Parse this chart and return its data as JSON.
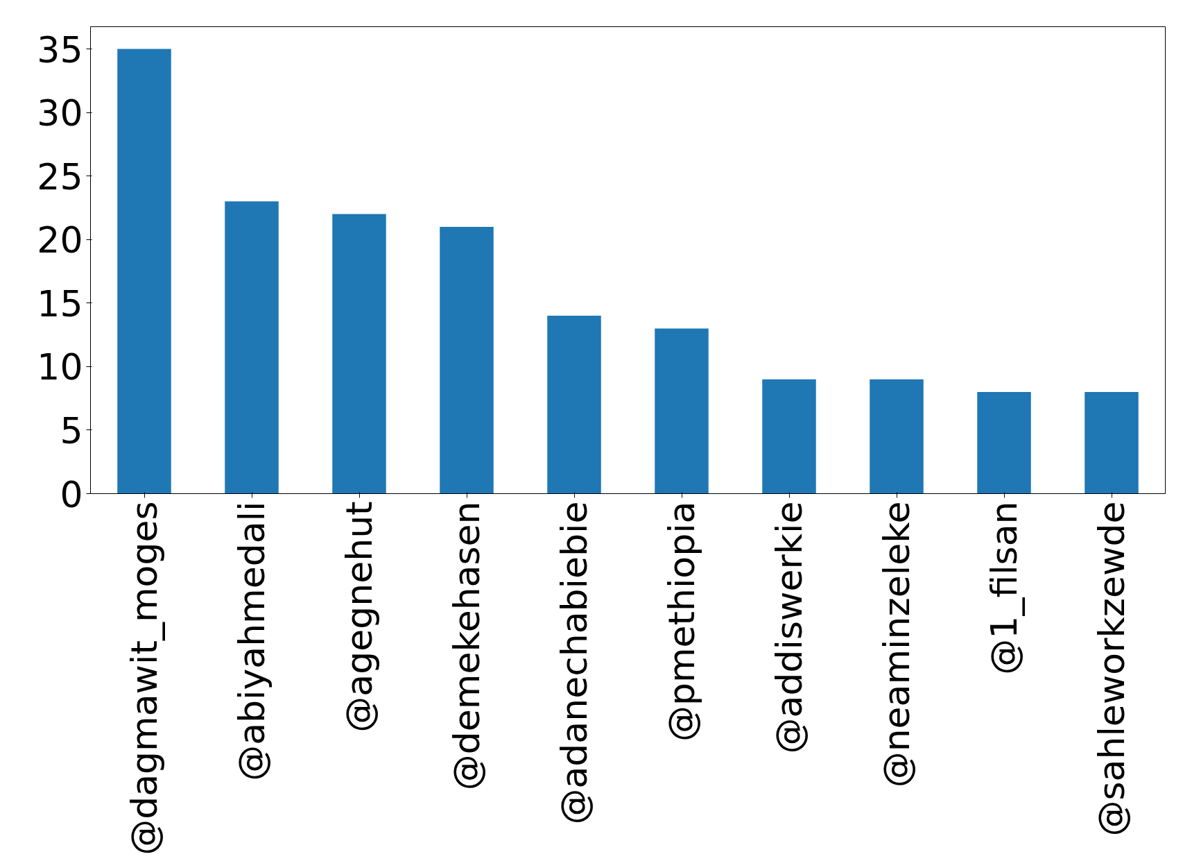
{
  "chart_data": {
    "type": "bar",
    "categories": [
      "@dagmawit_moges",
      "@abiyahmedali",
      "@agegnehut",
      "@demekehasen",
      "@adanechabiebie",
      "@pmethiopia",
      "@addiswerkie",
      "@neaminzeleke",
      "@1_filsan",
      "@sahleworkzewde"
    ],
    "values": [
      35,
      23,
      22,
      21,
      14,
      13,
      9,
      9,
      8,
      8
    ],
    "color": "#1f77b4",
    "ylim": [
      0,
      36.75
    ],
    "yticks": [
      0,
      5,
      10,
      15,
      20,
      25,
      30,
      35
    ],
    "grid": false
  }
}
